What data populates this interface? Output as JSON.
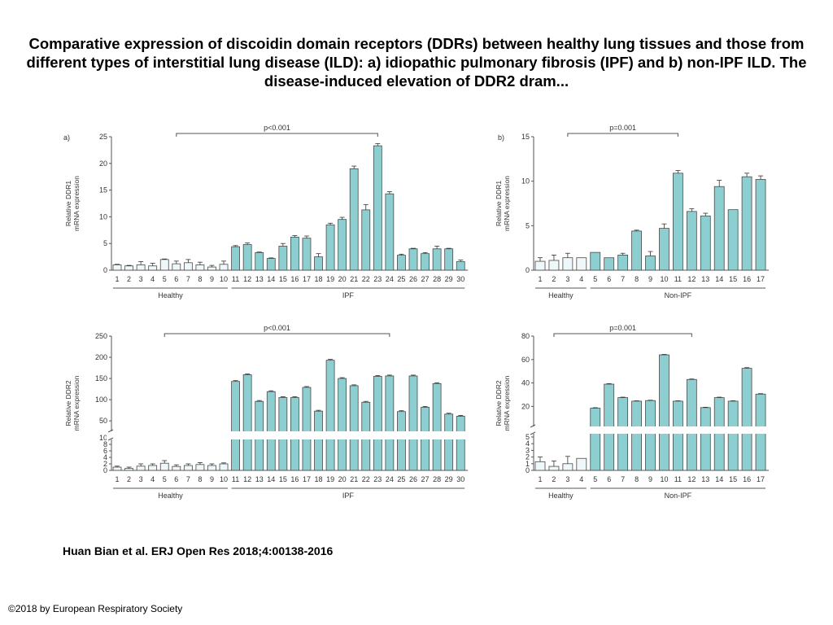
{
  "title": "Comparative expression of discoidin domain receptors (DDRs) between healthy lung tissues and those from different types of interstitial lung disease (ILD): a) idiopathic pulmonary fibrosis (IPF) and b) non-IPF ILD. The disease-induced elevation of DDR2 dram...",
  "citation": "Huan Bian et al. ERJ Open Res 2018;4:00138-2016",
  "copyright": "©2018 by European Respiratory Society",
  "colors": {
    "healthy": "#eef7f9",
    "disease": "#8dcfd1",
    "stroke": "#4a4a4a"
  },
  "chart_data": [
    {
      "type": "bar",
      "panel": "a)",
      "ylabel": [
        "Relative DDR1",
        "mRNA expression"
      ],
      "ylim": [
        0,
        25
      ],
      "yticks": [
        0,
        5,
        10,
        15,
        20,
        25
      ],
      "categories": [
        "1",
        "2",
        "3",
        "4",
        "5",
        "6",
        "7",
        "8",
        "9",
        "10",
        "11",
        "12",
        "13",
        "14",
        "15",
        "16",
        "17",
        "18",
        "19",
        "20",
        "21",
        "22",
        "23",
        "24",
        "25",
        "26",
        "27",
        "28",
        "29",
        "30"
      ],
      "values": [
        1.0,
        0.8,
        1.0,
        0.8,
        2.0,
        1.2,
        1.4,
        1.0,
        0.6,
        1.1,
        4.4,
        4.8,
        3.3,
        2.2,
        4.5,
        6.2,
        6.0,
        2.5,
        8.5,
        9.5,
        19.0,
        11.3,
        23.3,
        14.3,
        2.8,
        4.0,
        3.1,
        4.0,
        4.0,
        1.6
      ],
      "errors": [
        0.1,
        0.1,
        0.6,
        0.5,
        0.1,
        0.5,
        0.6,
        0.5,
        0.3,
        0.6,
        0.2,
        0.3,
        0.1,
        0.1,
        0.5,
        0.3,
        0.4,
        0.6,
        0.3,
        0.4,
        0.5,
        1.0,
        0.4,
        0.4,
        0.2,
        0.1,
        0.2,
        0.5,
        0.1,
        0.3
      ],
      "healthy_count": 10,
      "group_labels": [
        "Healthy",
        "IPF"
      ],
      "significance": {
        "label": "p<0.001",
        "from": "6",
        "to": "23"
      }
    },
    {
      "type": "bar",
      "panel": "b)",
      "ylabel": [
        "Relative DDR1",
        "mRNA expression"
      ],
      "ylim": [
        0,
        15
      ],
      "yticks": [
        0,
        5,
        10,
        15
      ],
      "categories": [
        "1",
        "2",
        "3",
        "4",
        "5",
        "6",
        "7",
        "8",
        "9",
        "10",
        "11",
        "12",
        "13",
        "14",
        "15",
        "16",
        "17"
      ],
      "values": [
        1.0,
        1.1,
        1.4,
        1.4,
        2.0,
        1.4,
        1.7,
        4.4,
        1.6,
        4.7,
        10.9,
        6.6,
        6.1,
        9.4,
        6.8,
        10.5,
        10.2
      ],
      "errors": [
        0.4,
        0.6,
        0.5,
        0.0,
        0.0,
        0.0,
        0.2,
        0.1,
        0.5,
        0.5,
        0.3,
        0.3,
        0.3,
        0.7,
        0.0,
        0.4,
        0.4
      ],
      "healthy_count": 4,
      "group_labels": [
        "Healthy",
        "Non-IPF"
      ],
      "significance": {
        "label": "p=0.001",
        "from": "3",
        "to": "11"
      }
    },
    {
      "type": "bar",
      "panel": "",
      "ylabel": [
        "Relative DDR2",
        "mRNA expression"
      ],
      "broken_axis": {
        "lower": [
          0,
          10
        ],
        "upper": [
          10,
          250
        ]
      },
      "yticks_lower": [
        0,
        2,
        4,
        6,
        8,
        10
      ],
      "yticks_upper": [
        50,
        100,
        150,
        200,
        250
      ],
      "categories": [
        "1",
        "2",
        "3",
        "4",
        "5",
        "6",
        "7",
        "8",
        "9",
        "10",
        "11",
        "12",
        "13",
        "14",
        "15",
        "16",
        "17",
        "18",
        "19",
        "20",
        "21",
        "22",
        "23",
        "24",
        "25",
        "26",
        "27",
        "28",
        "29",
        "30"
      ],
      "values": [
        1.0,
        0.6,
        1.3,
        1.5,
        2.2,
        1.2,
        1.5,
        1.8,
        1.5,
        2.0,
        143,
        159,
        96,
        119,
        105,
        105,
        129,
        73,
        193,
        150,
        133,
        94,
        155,
        156,
        72,
        156,
        82,
        138,
        66,
        61
      ],
      "errors": [
        0.3,
        0.4,
        0.7,
        0.5,
        0.8,
        0.5,
        0.5,
        0.6,
        0.5,
        0.3,
        2,
        2,
        2,
        2,
        2,
        2,
        2,
        2,
        2,
        2,
        2,
        2,
        2,
        2,
        2,
        2,
        2,
        2,
        2,
        2
      ],
      "healthy_count": 10,
      "group_labels": [
        "Healthy",
        "IPF"
      ],
      "significance": {
        "label": "p<0.001",
        "from": "5",
        "to": "24"
      }
    },
    {
      "type": "bar",
      "panel": "",
      "ylabel": [
        "Relative DDR2",
        "mRNA expression"
      ],
      "broken_axis": {
        "lower": [
          0,
          5
        ],
        "upper": [
          5,
          80
        ]
      },
      "yticks_lower": [
        0,
        1,
        2,
        3,
        4,
        5
      ],
      "yticks_upper": [
        20,
        40,
        60,
        80
      ],
      "categories": [
        "1",
        "2",
        "3",
        "4",
        "5",
        "6",
        "7",
        "8",
        "9",
        "10",
        "11",
        "12",
        "13",
        "14",
        "15",
        "16",
        "17"
      ],
      "values": [
        1.3,
        0.6,
        1.0,
        1.8,
        18.5,
        39,
        27.5,
        24.5,
        25,
        64,
        24.5,
        43,
        19,
        27.5,
        24.5,
        52.5,
        30.5
      ],
      "errors": [
        0.7,
        0.8,
        1.1,
        0.0,
        0.4,
        0.5,
        0.4,
        0.3,
        0.3,
        0.4,
        0.3,
        0.4,
        0.3,
        0.4,
        0.3,
        0.6,
        0.4
      ],
      "healthy_count": 4,
      "group_labels": [
        "Healthy",
        "Non-IPF"
      ],
      "significance": {
        "label": "p=0.001",
        "from": "2",
        "to": "12"
      }
    }
  ]
}
